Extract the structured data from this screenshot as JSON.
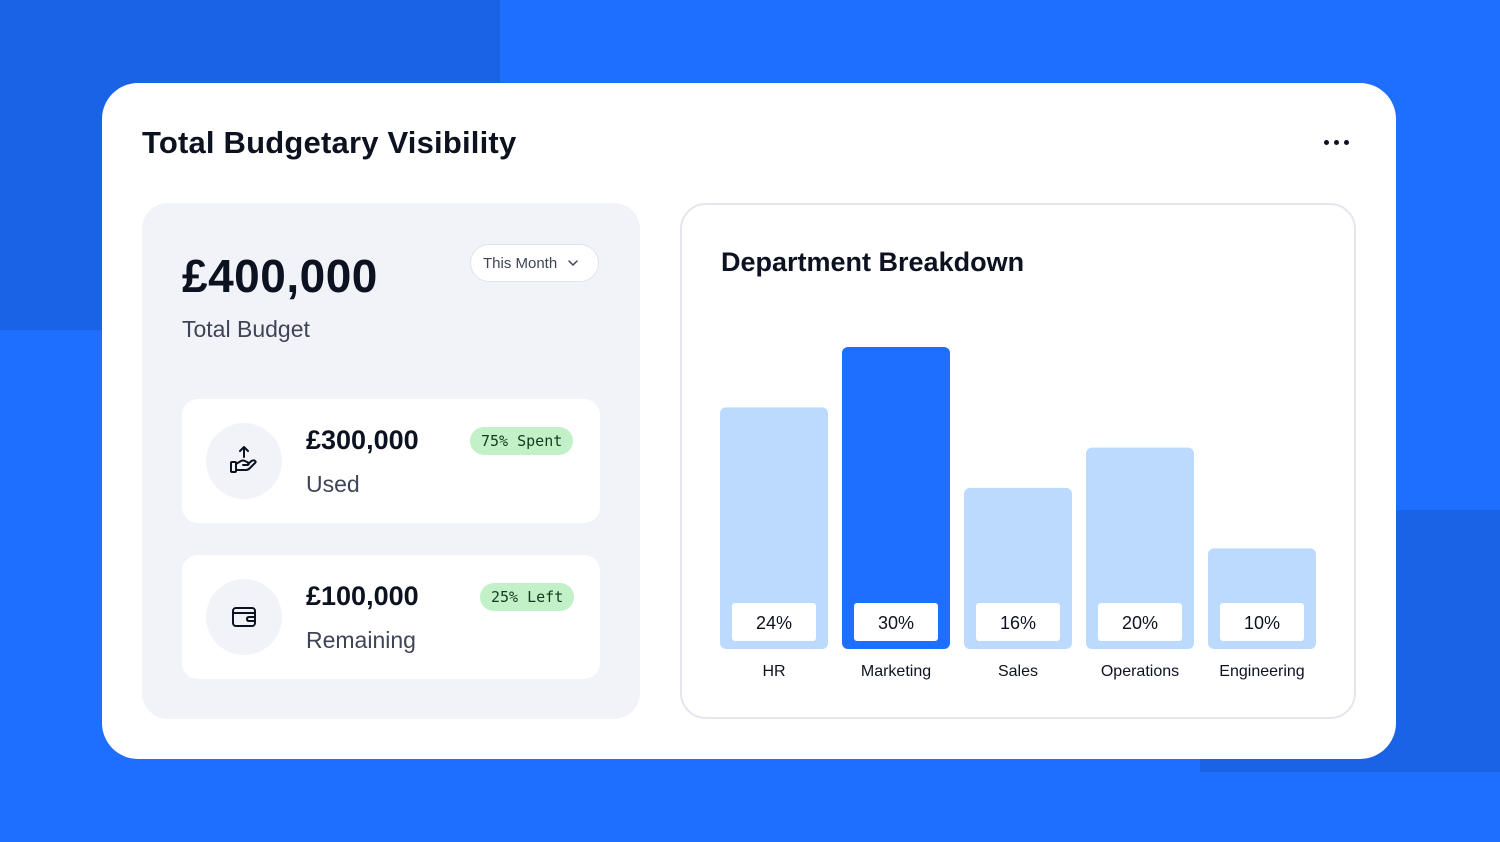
{
  "card": {
    "title": "Total Budgetary Visibility",
    "more_icon": "more-horizontal-icon"
  },
  "summary": {
    "total_amount": "£400,000",
    "total_label": "Total Budget",
    "period": "This Month"
  },
  "stats": {
    "used": {
      "amount": "£300,000",
      "label": "Used",
      "badge": "75% Spent",
      "icon": "hand-coin-up-icon"
    },
    "remaining": {
      "amount": "£100,000",
      "label": "Remaining",
      "badge": "25% Left",
      "icon": "wallet-icon"
    }
  },
  "colors": {
    "background": "#1f6ffe",
    "bar_highlight": "#1f6ffe",
    "bar_default": "#bbdafd",
    "badge_bg": "#c2f0c7"
  },
  "chart_data": {
    "type": "bar",
    "title": "Department Breakdown",
    "categories": [
      "HR",
      "Marketing",
      "Sales",
      "Operations",
      "Engineering"
    ],
    "values": [
      24,
      30,
      16,
      20,
      10
    ],
    "value_labels": [
      "24%",
      "30%",
      "16%",
      "20%",
      "10%"
    ],
    "highlight_index": 1,
    "ylim": [
      0,
      30
    ],
    "xlabel": "",
    "ylabel": "",
    "grid": false,
    "legend": "none"
  }
}
